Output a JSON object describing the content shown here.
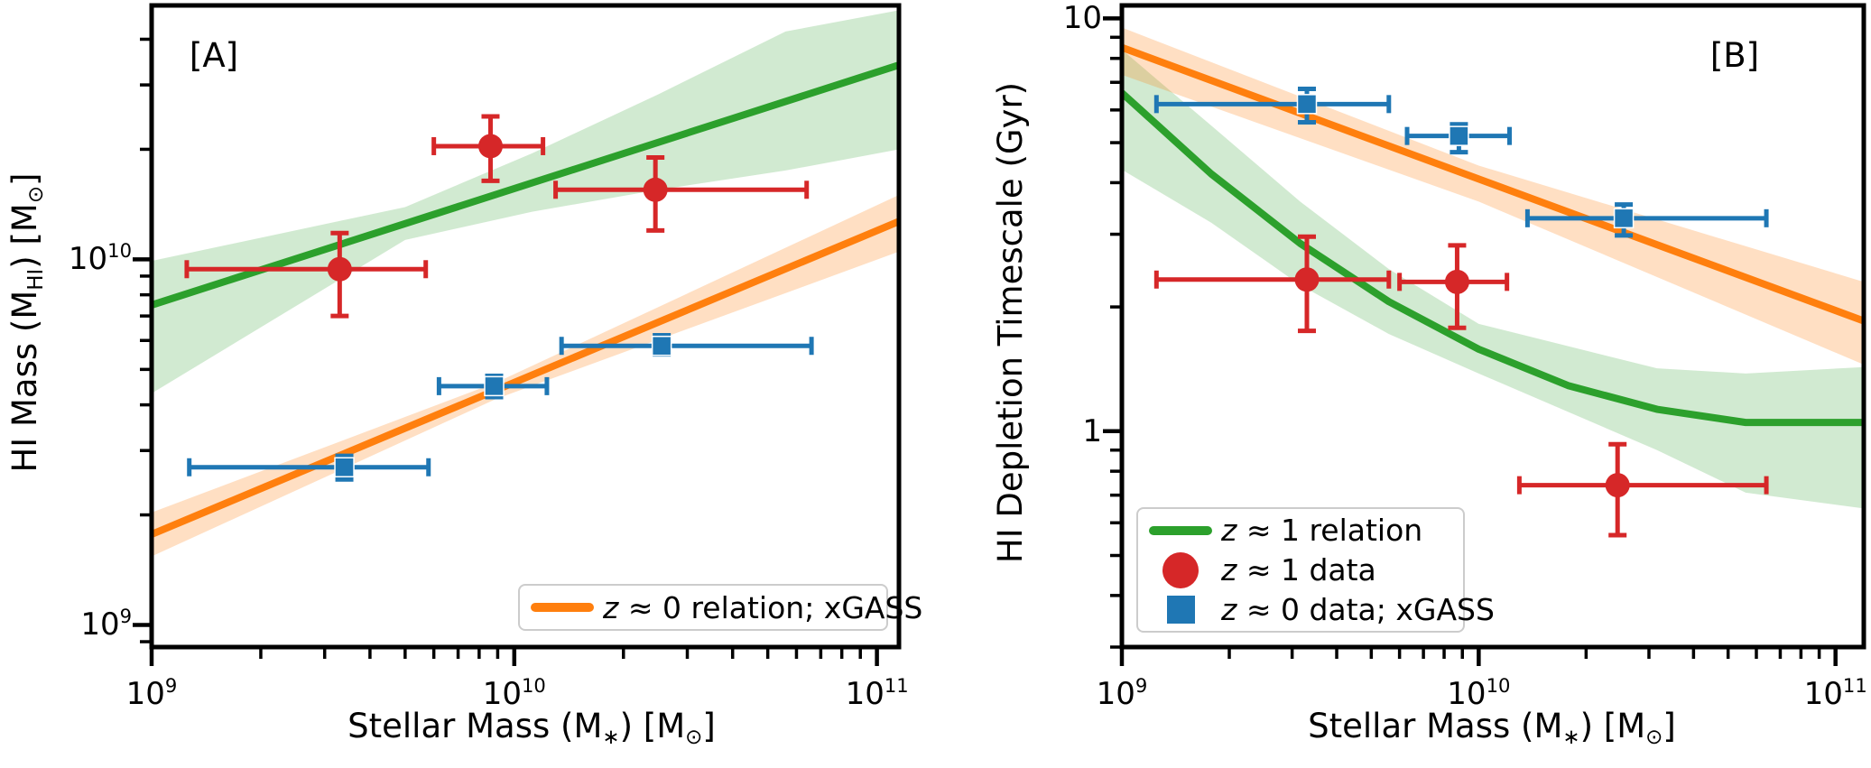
{
  "colors": {
    "green": "#2ca02c",
    "orange": "#ff7f0e",
    "red": "#d62728",
    "blue": "#1f77b4",
    "axis": "#000000",
    "legend_border": "#cccccc"
  },
  "band_alpha": {
    "green": 0.22,
    "orange": 0.25
  },
  "chart_data": [
    {
      "id": "panel-A",
      "type": "line+scatter",
      "tag": "[A]",
      "x_axis": {
        "min": 1000000000.0,
        "max": 115000000000.0,
        "scale": "log",
        "label_parts": [
          {
            "t": "Stellar Mass (M",
            "s": ""
          },
          {
            "t": "∗",
            "s": "sub"
          },
          {
            "t": ") [M",
            "s": ""
          },
          {
            "t": "⊙",
            "s": "sub"
          },
          {
            "t": "]",
            "s": ""
          }
        ],
        "ticks": [
          {
            "v": 1000000000.0,
            "parts": [
              {
                "t": "10",
                "s": ""
              },
              {
                "t": "9",
                "s": "sup"
              }
            ]
          },
          {
            "v": 10000000000.0,
            "parts": [
              {
                "t": "10",
                "s": ""
              },
              {
                "t": "10",
                "s": "sup"
              }
            ]
          },
          {
            "v": 100000000000.0,
            "parts": [
              {
                "t": "10",
                "s": ""
              },
              {
                "t": "11",
                "s": "sup"
              }
            ]
          }
        ]
      },
      "y_axis": {
        "min": 870000000.0,
        "max": 49500000000.0,
        "scale": "log",
        "label_parts": [
          {
            "t": "HI Mass (M",
            "s": ""
          },
          {
            "t": "HI",
            "s": "sub"
          },
          {
            "t": ") [M",
            "s": ""
          },
          {
            "t": "⊙",
            "s": "sub"
          },
          {
            "t": "]",
            "s": ""
          }
        ],
        "ticks": [
          {
            "v": 1000000000.0,
            "parts": [
              {
                "t": "10",
                "s": ""
              },
              {
                "t": "9",
                "s": "sup"
              }
            ]
          },
          {
            "v": 10000000000.0,
            "parts": [
              {
                "t": "10",
                "s": ""
              },
              {
                "t": "10",
                "s": "sup"
              }
            ]
          }
        ]
      },
      "series": [
        {
          "name": "z≈1 relation band",
          "kind": "band",
          "color": "green",
          "samples": [
            [
              1000000000.0,
              4300000000.0,
              9900000000.0
            ],
            [
              5000000000.0,
              11300000000.0,
              13900000000.0
            ],
            [
              11200000000.0,
              13500000000.0,
              19500000000.0
            ],
            [
              25000000000.0,
              15500000000.0,
              28300000000.0
            ],
            [
              56000000000.0,
              17500000000.0,
              42000000000.0
            ],
            [
              115000000000.0,
              20000000000.0,
              48000000000.0
            ]
          ]
        },
        {
          "name": "z≈1 relation",
          "kind": "line",
          "color": "green",
          "points": [
            [
              1000000000.0,
              7500000000.0
            ],
            [
              115000000000.0,
              34000000000.0
            ]
          ]
        },
        {
          "name": "z≈0 relation band; xGASS",
          "kind": "band",
          "color": "orange",
          "samples": [
            [
              1000000000.0,
              1540000000.0,
              2030000000.0
            ],
            [
              8900000000.0,
              4150000000.0,
              4600000000.0
            ],
            [
              115000000000.0,
              10500000000.0,
              15000000000.0
            ]
          ]
        },
        {
          "name": "z≈0 relation; xGASS",
          "kind": "line",
          "color": "orange",
          "points": [
            [
              1000000000.0,
              1770000000.0
            ],
            [
              115000000000.0,
              12700000000.0
            ]
          ]
        },
        {
          "name": "z≈0 data; xGASS",
          "kind": "scatter",
          "marker": "square",
          "color": "blue",
          "points": [
            {
              "x": 3400000000.0,
              "xlo": 1270000000.0,
              "xhi": 5800000000.0,
              "y": 2700000000.0,
              "ylo": 2500000000.0,
              "yhi": 2900000000.0
            },
            {
              "x": 8800000000.0,
              "xlo": 6200000000.0,
              "xhi": 12300000000.0,
              "y": 4500000000.0,
              "ylo": 4200000000.0,
              "yhi": 4800000000.0
            },
            {
              "x": 25500000000.0,
              "xlo": 13500000000.0,
              "xhi": 66000000000.0,
              "y": 5800000000.0,
              "ylo": 5500000000.0,
              "yhi": 6200000000.0
            }
          ]
        },
        {
          "name": "z≈1 data",
          "kind": "scatter",
          "marker": "circle",
          "color": "red",
          "points": [
            {
              "x": 3300000000.0,
              "xlo": 1250000000.0,
              "xhi": 5700000000.0,
              "y": 9400000000.0,
              "ylo": 7000000000.0,
              "yhi": 11800000000.0
            },
            {
              "x": 8600000000.0,
              "xlo": 6000000000.0,
              "xhi": 12000000000.0,
              "y": 20400000000.0,
              "ylo": 16400000000.0,
              "yhi": 24600000000.0
            },
            {
              "x": 24500000000.0,
              "xlo": 13000000000.0,
              "xhi": 64000000000.0,
              "y": 15500000000.0,
              "ylo": 12000000000.0,
              "yhi": 19000000000.0
            }
          ]
        }
      ],
      "legend": {
        "items": [
          {
            "swatch": "line",
            "color": "orange",
            "parts": [
              {
                "t": "z",
                "s": "i"
              },
              {
                "t": " ≈ 0 relation; xGASS",
                "s": ""
              }
            ]
          }
        ]
      }
    },
    {
      "id": "panel-B",
      "type": "line+scatter",
      "tag": "[B]",
      "x_axis": {
        "min": 1000000000.0,
        "max": 120000000000.0,
        "scale": "log",
        "label_parts": [
          {
            "t": "Stellar Mass (M",
            "s": ""
          },
          {
            "t": "∗",
            "s": "sub"
          },
          {
            "t": ") [M",
            "s": ""
          },
          {
            "t": "⊙",
            "s": "sub"
          },
          {
            "t": "]",
            "s": ""
          }
        ],
        "ticks": [
          {
            "v": 1000000000.0,
            "parts": [
              {
                "t": "10",
                "s": ""
              },
              {
                "t": "9",
                "s": "sup"
              }
            ]
          },
          {
            "v": 10000000000.0,
            "parts": [
              {
                "t": "10",
                "s": ""
              },
              {
                "t": "10",
                "s": "sup"
              }
            ]
          },
          {
            "v": 100000000000.0,
            "parts": [
              {
                "t": "10",
                "s": ""
              },
              {
                "t": "11",
                "s": "sup"
              }
            ]
          }
        ]
      },
      "y_axis": {
        "min": 0.3,
        "max": 10.75,
        "scale": "log",
        "label_parts": [
          {
            "t": "HI Depletion Timescale (Gyr)",
            "s": ""
          }
        ],
        "ticks": [
          {
            "v": 10,
            "parts": [
              {
                "t": "10",
                "s": ""
              }
            ]
          },
          {
            "v": 1,
            "parts": [
              {
                "t": "1",
                "s": ""
              }
            ]
          }
        ]
      },
      "series": [
        {
          "name": "z≈1 relation band",
          "kind": "band",
          "color": "green",
          "samples": [
            [
              1000000000.0,
              4.3,
              8.4
            ],
            [
              1780000000.0,
              3.2,
              5.5
            ],
            [
              3160000000.0,
              2.26,
              3.6
            ],
            [
              5600000000.0,
              1.72,
              2.47
            ],
            [
              10000000000.0,
              1.38,
              1.82
            ],
            [
              31600000000.0,
              0.9,
              1.42
            ],
            [
              56000000000.0,
              0.71,
              1.38
            ],
            [
              120000000000.0,
              0.65,
              1.43
            ]
          ]
        },
        {
          "name": "z≈1 relation",
          "kind": "line",
          "color": "green",
          "points": [
            [
              1000000000.0,
              6.6
            ],
            [
              1780000000.0,
              4.2
            ],
            [
              3160000000.0,
              2.85
            ],
            [
              5600000000.0,
              2.06
            ],
            [
              10000000000.0,
              1.58
            ],
            [
              17800000000.0,
              1.29
            ],
            [
              31600000000.0,
              1.13
            ],
            [
              56000000000.0,
              1.05
            ],
            [
              120000000000.0,
              1.05
            ]
          ]
        },
        {
          "name": "z≈0 relation band; xGASS",
          "kind": "band",
          "color": "orange",
          "samples": [
            [
              1000000000.0,
              7.3,
              9.5
            ],
            [
              10000000000.0,
              3.6,
              4.4
            ],
            [
              120000000000.0,
              1.45,
              2.3
            ]
          ]
        },
        {
          "name": "z≈0 relation; xGASS",
          "kind": "line",
          "color": "orange",
          "points": [
            [
              1000000000.0,
              8.5
            ],
            [
              120000000000.0,
              1.85
            ]
          ]
        },
        {
          "name": "z≈0 data; xGASS",
          "kind": "scatter",
          "marker": "square",
          "color": "blue",
          "points": [
            {
              "x": 3300000000.0,
              "xlo": 1250000000.0,
              "xhi": 5600000000.0,
              "y": 6.2,
              "ylo": 5.6,
              "yhi": 6.75
            },
            {
              "x": 8800000000.0,
              "xlo": 6300000000.0,
              "xhi": 12200000000.0,
              "y": 5.19,
              "ylo": 4.74,
              "yhi": 5.54
            },
            {
              "x": 25500000000.0,
              "xlo": 13700000000.0,
              "xhi": 64000000000.0,
              "y": 3.28,
              "ylo": 2.98,
              "yhi": 3.54
            }
          ]
        },
        {
          "name": "z≈1 data",
          "kind": "scatter",
          "marker": "circle",
          "color": "red",
          "points": [
            {
              "x": 3300000000.0,
              "xlo": 1250000000.0,
              "xhi": 5600000000.0,
              "y": 2.33,
              "ylo": 1.75,
              "yhi": 2.96
            },
            {
              "x": 8700000000.0,
              "xlo": 6000000000.0,
              "xhi": 12000000000.0,
              "y": 2.3,
              "ylo": 1.78,
              "yhi": 2.82
            },
            {
              "x": 24500000000.0,
              "xlo": 13000000000.0,
              "xhi": 64000000000.0,
              "y": 0.74,
              "ylo": 0.56,
              "yhi": 0.93
            }
          ]
        }
      ],
      "legend": {
        "items": [
          {
            "swatch": "line",
            "color": "green",
            "parts": [
              {
                "t": "z",
                "s": "i"
              },
              {
                "t": " ≈ 1 relation",
                "s": ""
              }
            ]
          },
          {
            "swatch": "circle",
            "color": "red",
            "parts": [
              {
                "t": "z",
                "s": "i"
              },
              {
                "t": " ≈ 1 data",
                "s": ""
              }
            ]
          },
          {
            "swatch": "square",
            "color": "blue",
            "parts": [
              {
                "t": "z",
                "s": "i"
              },
              {
                "t": " ≈ 0 data; xGASS",
                "s": ""
              }
            ]
          }
        ]
      }
    }
  ]
}
